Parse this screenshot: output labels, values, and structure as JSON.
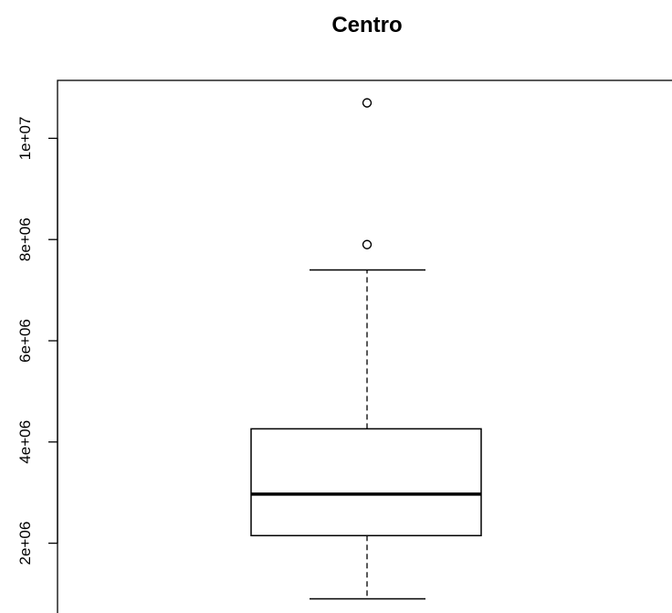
{
  "chart_data": {
    "type": "boxplot",
    "title": "Centro",
    "xlabel": "",
    "ylabel": "",
    "y_axis_ticks": [
      {
        "value": 2000000,
        "label": "2e+06"
      },
      {
        "value": 4000000,
        "label": "4e+06"
      },
      {
        "value": 6000000,
        "label": "6e+06"
      },
      {
        "value": 8000000,
        "label": "8e+06"
      },
      {
        "value": 10000000,
        "label": "1e+07"
      }
    ],
    "ylim": [
      700000,
      11100000
    ],
    "box": {
      "whisker_low": 900000,
      "q1": 2150000,
      "median": 2970000,
      "q3": 4260000,
      "whisker_high": 7400000
    },
    "outliers": [
      7900000,
      10700000
    ],
    "colors": {
      "stroke": "#000000",
      "background": "#ffffff"
    }
  }
}
